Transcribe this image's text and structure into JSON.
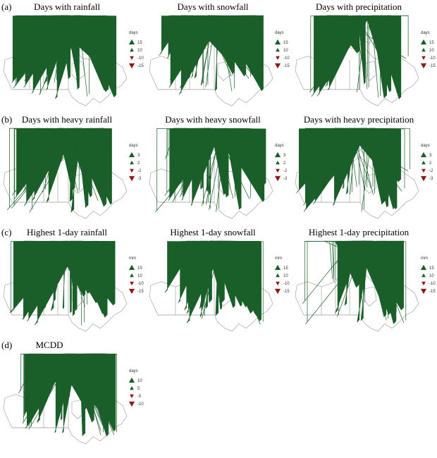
{
  "rows": [
    {
      "label": "(a)",
      "panels": [
        {
          "title": "Days with rainfall",
          "legend": {
            "unit": "days",
            "levels": [
              15,
              10,
              -10,
              -15
            ]
          }
        },
        {
          "title": "Days with snowfall",
          "legend": {
            "unit": "days",
            "levels": [
              15,
              10,
              -10,
              -15
            ]
          }
        },
        {
          "title": "Days with precipitation",
          "legend": {
            "unit": "days",
            "levels": [
              15,
              10,
              -10,
              -15
            ]
          }
        }
      ]
    },
    {
      "label": "(b)",
      "panels": [
        {
          "title": "Days with heavy rainfall",
          "legend": {
            "unit": "days",
            "levels": [
              3,
              2,
              -2,
              -3
            ]
          }
        },
        {
          "title": "Days with heavy snowfall",
          "legend": {
            "unit": "days",
            "levels": [
              3,
              2,
              -2,
              -3
            ]
          }
        },
        {
          "title": "Days with heavy precipitation",
          "legend": {
            "unit": "days",
            "levels": [
              3,
              2,
              -2,
              -3
            ]
          }
        }
      ]
    },
    {
      "label": "(c)",
      "panels": [
        {
          "title": "Highest 1-day rainfall",
          "legend": {
            "unit": "mm",
            "levels": [
              15,
              10,
              -10,
              -15
            ]
          }
        },
        {
          "title": "Highest 1-day snowfall",
          "legend": {
            "unit": "mm",
            "levels": [
              15,
              10,
              -10,
              -15
            ]
          }
        },
        {
          "title": "Highest 1-day precipitation",
          "legend": {
            "unit": "mm",
            "levels": [
              15,
              10,
              -10,
              -15
            ]
          }
        }
      ]
    },
    {
      "label": "(d)",
      "panels": [
        {
          "title": "MCDD",
          "legend": {
            "unit": "days",
            "levels": [
              10,
              5,
              -5,
              -10
            ]
          }
        }
      ]
    }
  ]
}
